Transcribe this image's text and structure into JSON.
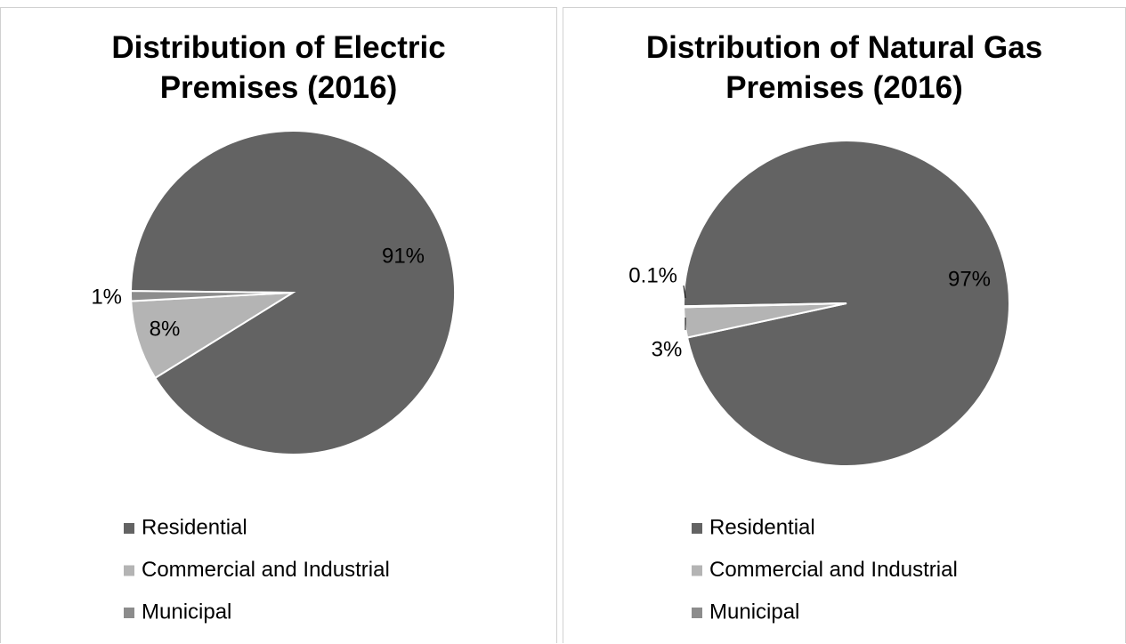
{
  "chart_data": [
    {
      "type": "pie",
      "title": "Distribution of Electric Premises (2016)",
      "categories": [
        "Residential",
        "Commercial and Industrial",
        "Municipal"
      ],
      "values": [
        91,
        8,
        1
      ],
      "value_labels": [
        "91%",
        "8%",
        "1%"
      ],
      "colors": [
        "#636363",
        "#b4b4b4",
        "#8c8c8c"
      ],
      "legend": "bottom"
    },
    {
      "type": "pie",
      "title": "Distribution of Natural Gas Premises (2016)",
      "categories": [
        "Residential",
        "Commercial and Industrial",
        "Municipal"
      ],
      "values": [
        97,
        3,
        0.1
      ],
      "value_labels": [
        "97%",
        "3%",
        "0.1%"
      ],
      "colors": [
        "#636363",
        "#b4b4b4",
        "#8c8c8c"
      ],
      "legend": "bottom"
    }
  ]
}
